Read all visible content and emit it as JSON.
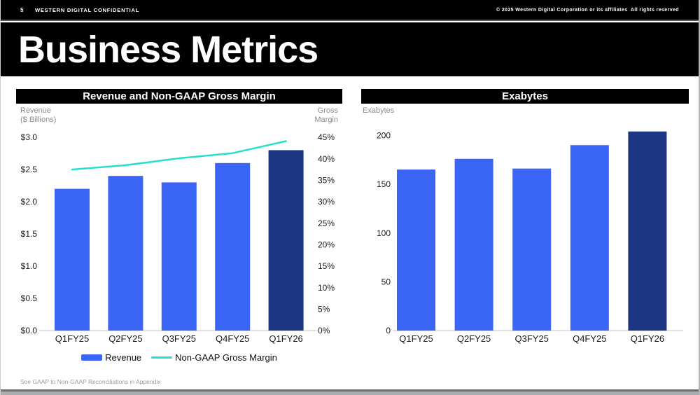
{
  "topbar": {
    "page_number": "5",
    "confidential": "WESTERN DIGITAL CONFIDENTIAL",
    "copyright": "© 2025 Western Digital Corporation or its affiliates  All rights reserved"
  },
  "title": "Business Metrics",
  "footer_note": "See GAAP to Non-GAAP Reconciliations in Appendix",
  "colors": {
    "bar_blue": "#3B65F5",
    "bar_navy": "#1C3684",
    "line_cyan": "#26DFC9",
    "label_gray": "#8C8C8C",
    "axis_text": "#1A1A1A",
    "baseline_gray": "#D8D8D8",
    "header_bg": "#000000",
    "header_text": "#FFFFFF"
  },
  "chart_data": [
    {
      "type": "bar",
      "title": "Revenue and Non-GAAP Gross Margin",
      "categories": [
        "Q1FY25",
        "Q2FY25",
        "Q3FY25",
        "Q4FY25",
        "Q1FY26"
      ],
      "series": [
        {
          "name": "Revenue",
          "type": "bar",
          "axis": "left",
          "values": [
            2.2,
            2.4,
            2.3,
            2.6,
            2.8
          ]
        },
        {
          "name": "Non-GAAP Gross Margin",
          "type": "line",
          "axis": "right",
          "values": [
            37.5,
            38.5,
            40.1,
            41.3,
            44.1
          ]
        }
      ],
      "bar_colors": [
        "#3B65F5",
        "#3B65F5",
        "#3B65F5",
        "#3B65F5",
        "#1C3684"
      ],
      "line_color": "#26DFC9",
      "left_axis": {
        "title": "Revenue\n($ Billions)",
        "min": 0,
        "max": 3,
        "ticks": [
          "$0.0",
          "$0.5",
          "$1.0",
          "$1.5",
          "$2.0",
          "$2.5",
          "$3.0"
        ]
      },
      "right_axis": {
        "title": "Gross\nMargin",
        "min": 0,
        "max": 45,
        "ticks": [
          "0%",
          "5%",
          "10%",
          "15%",
          "20%",
          "25%",
          "30%",
          "35%",
          "40%",
          "45%"
        ]
      },
      "legend_position": "bottom",
      "grid": false
    },
    {
      "type": "bar",
      "title": "Exabytes",
      "categories": [
        "Q1FY25",
        "Q2FY25",
        "Q3FY25",
        "Q4FY25",
        "Q1FY26"
      ],
      "values": [
        165,
        176,
        166,
        190,
        204
      ],
      "bar_colors": [
        "#3B65F5",
        "#3B65F5",
        "#3B65F5",
        "#3B65F5",
        "#1C3684"
      ],
      "ylabel": "Exabytes",
      "yticks": [
        "0",
        "50",
        "100",
        "150",
        "200"
      ],
      "ylim": [
        0,
        210
      ],
      "grid": false
    }
  ]
}
